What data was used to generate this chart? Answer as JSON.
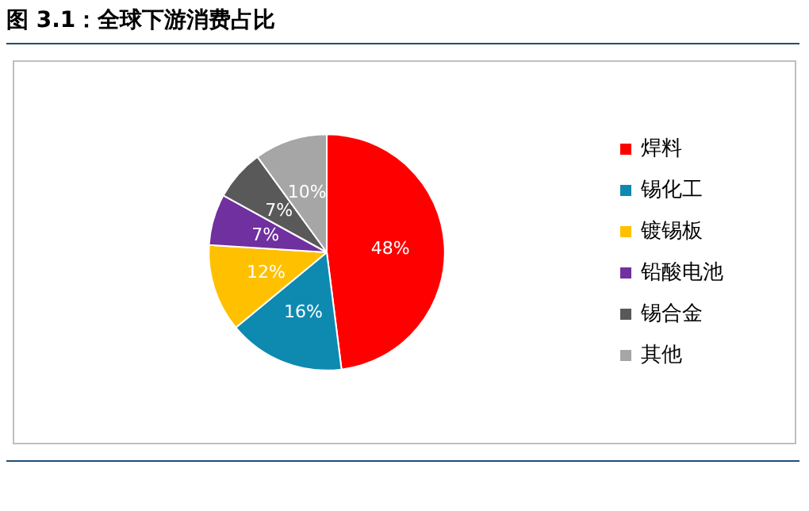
{
  "chart_data": {
    "type": "pie",
    "title": "图 3.1：全球下游消费占比",
    "categories": [
      "焊料",
      "锡化工",
      "镀锡板",
      "铅酸电池",
      "锡合金",
      "其他"
    ],
    "values": [
      48,
      16,
      12,
      7,
      7,
      10
    ],
    "colors": [
      "#ff0000",
      "#0e8ab0",
      "#ffc000",
      "#7030a0",
      "#595959",
      "#a6a6a6"
    ],
    "value_labels": [
      "48%",
      "16%",
      "12%",
      "7%",
      "7%",
      "10%"
    ],
    "legend": "right"
  }
}
